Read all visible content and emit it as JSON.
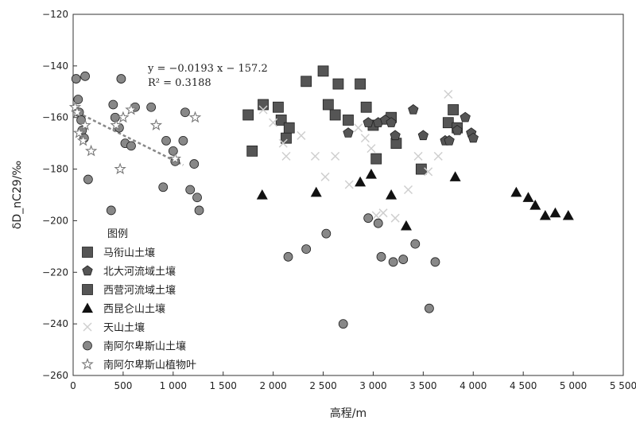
{
  "chart_data": {
    "type": "scatter",
    "xlabel": "高程/m",
    "ylabel": "δD_nC29/‰",
    "xlim": [
      0,
      5500
    ],
    "ylim": [
      -260,
      -120
    ],
    "xticks": [
      0,
      500,
      1000,
      1500,
      2000,
      2500,
      3000,
      3500,
      4000,
      4500,
      5000,
      5500
    ],
    "xtick_labels": [
      "0",
      "500",
      "1 000",
      "1 500",
      "2 000",
      "2 500",
      "3 000",
      "3 500",
      "4 000",
      "4 500",
      "5 000",
      "5 500"
    ],
    "yticks": [
      -260,
      -240,
      -220,
      -200,
      -180,
      -160,
      -140,
      -120
    ],
    "ytick_labels": [
      "−260",
      "−240",
      "−220",
      "−200",
      "−180",
      "−160",
      "−140",
      "−120"
    ],
    "grid": false,
    "legend_title": "图例",
    "legend_position": "bottom-left",
    "annotation": {
      "equation": "y = −0.0193 x − 157.2",
      "r2": "R² = 0.3188"
    },
    "trendline": {
      "slope": -0.0193,
      "intercept": -157.2,
      "x_range": [
        0,
        1100
      ]
    },
    "series": [
      {
        "name": "马衔山土壤",
        "marker": "square",
        "color": "#555555",
        "points": [
          [
            1750,
            -159
          ],
          [
            1790,
            -173
          ],
          [
            1900,
            -155
          ],
          [
            2050,
            -156
          ],
          [
            2080,
            -161
          ],
          [
            2130,
            -168
          ],
          [
            2160,
            -164
          ],
          [
            2330,
            -146
          ],
          [
            2500,
            -142
          ],
          [
            2550,
            -155
          ],
          [
            2620,
            -159
          ],
          [
            2650,
            -147
          ],
          [
            2750,
            -161
          ],
          [
            2870,
            -147
          ],
          [
            2930,
            -156
          ],
          [
            3000,
            -163
          ],
          [
            3030,
            -176
          ],
          [
            3180,
            -160
          ],
          [
            3230,
            -170
          ],
          [
            3480,
            -180
          ],
          [
            3750,
            -162
          ],
          [
            3800,
            -157
          ],
          [
            3840,
            -164
          ]
        ]
      },
      {
        "name": "北大河流域土壤",
        "marker": "pentagon",
        "color": "#555555",
        "points": [
          [
            2750,
            -166
          ],
          [
            2950,
            -162
          ],
          [
            3050,
            -162
          ],
          [
            3120,
            -161
          ],
          [
            3180,
            -162
          ],
          [
            3220,
            -167
          ],
          [
            3400,
            -157
          ],
          [
            3500,
            -167
          ],
          [
            3720,
            -169
          ],
          [
            3760,
            -169
          ],
          [
            3840,
            -165
          ],
          [
            3920,
            -160
          ],
          [
            3980,
            -166
          ],
          [
            4000,
            -168
          ]
        ]
      },
      {
        "name": "西营河流域土壤",
        "marker": "square",
        "color": "#555555",
        "points": []
      },
      {
        "name": "西昆仑山土壤",
        "marker": "triangle",
        "color": "#111111",
        "points": [
          [
            1890,
            -190
          ],
          [
            2430,
            -189
          ],
          [
            2870,
            -185
          ],
          [
            2980,
            -182
          ],
          [
            3180,
            -190
          ],
          [
            3330,
            -202
          ],
          [
            3820,
            -183
          ],
          [
            4430,
            -189
          ],
          [
            4550,
            -191
          ],
          [
            4620,
            -194
          ],
          [
            4720,
            -198
          ],
          [
            4820,
            -197
          ],
          [
            4950,
            -198
          ]
        ]
      },
      {
        "name": "天山土壤",
        "marker": "x",
        "color": "#cfcfcf",
        "points": [
          [
            1900,
            -157
          ],
          [
            2000,
            -162
          ],
          [
            2100,
            -170
          ],
          [
            2130,
            -175
          ],
          [
            2280,
            -167
          ],
          [
            2420,
            -175
          ],
          [
            2520,
            -183
          ],
          [
            2620,
            -175
          ],
          [
            2760,
            -186
          ],
          [
            2850,
            -164
          ],
          [
            2920,
            -168
          ],
          [
            2980,
            -172
          ],
          [
            3030,
            -198
          ],
          [
            3100,
            -197
          ],
          [
            3220,
            -199
          ],
          [
            3350,
            -188
          ],
          [
            3450,
            -175
          ],
          [
            3550,
            -181
          ],
          [
            3650,
            -175
          ],
          [
            3750,
            -151
          ]
        ]
      },
      {
        "name": "南阿尔卑斯山土壤",
        "marker": "circle",
        "color": "#888888",
        "points": [
          [
            30,
            -145
          ],
          [
            50,
            -153
          ],
          [
            60,
            -158
          ],
          [
            80,
            -161
          ],
          [
            90,
            -165
          ],
          [
            110,
            -168
          ],
          [
            120,
            -144
          ],
          [
            150,
            -184
          ],
          [
            380,
            -196
          ],
          [
            400,
            -155
          ],
          [
            420,
            -160
          ],
          [
            460,
            -164
          ],
          [
            480,
            -145
          ],
          [
            520,
            -170
          ],
          [
            580,
            -171
          ],
          [
            620,
            -156
          ],
          [
            780,
            -156
          ],
          [
            900,
            -187
          ],
          [
            930,
            -169
          ],
          [
            1000,
            -173
          ],
          [
            1020,
            -177
          ],
          [
            1100,
            -169
          ],
          [
            1120,
            -158
          ],
          [
            1170,
            -188
          ],
          [
            1210,
            -178
          ],
          [
            1240,
            -191
          ],
          [
            1260,
            -196
          ],
          [
            2150,
            -214
          ],
          [
            2330,
            -211
          ],
          [
            2530,
            -205
          ],
          [
            2700,
            -240
          ],
          [
            2950,
            -199
          ],
          [
            3050,
            -201
          ],
          [
            3080,
            -214
          ],
          [
            3200,
            -216
          ],
          [
            3300,
            -215
          ],
          [
            3420,
            -209
          ],
          [
            3560,
            -234
          ],
          [
            3620,
            -216
          ]
        ]
      },
      {
        "name": "南阿尔卑斯山植物叶",
        "marker": "star",
        "color": "#777777",
        "points": [
          [
            20,
            -156
          ],
          [
            40,
            -158
          ],
          [
            60,
            -166
          ],
          [
            100,
            -169
          ],
          [
            120,
            -163
          ],
          [
            180,
            -173
          ],
          [
            430,
            -163
          ],
          [
            470,
            -180
          ],
          [
            500,
            -160
          ],
          [
            580,
            -157
          ],
          [
            830,
            -163
          ],
          [
            1020,
            -176
          ],
          [
            1220,
            -160
          ]
        ]
      }
    ]
  }
}
